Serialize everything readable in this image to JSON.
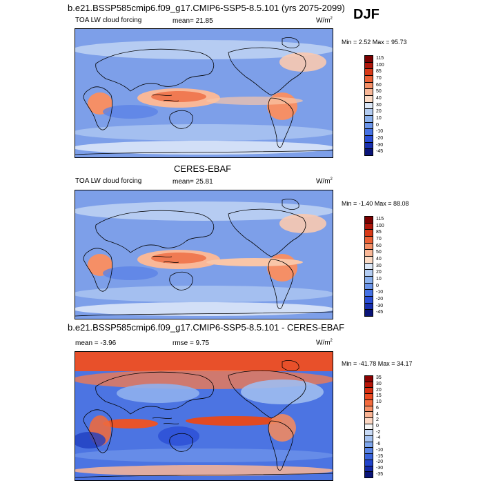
{
  "season": "DJF",
  "units_label": "W/m",
  "units_sup": "2",
  "panels": [
    {
      "title": "b.e21.BSSP585cmip6.f09_g17.CMIP6-SSP5-8.5.101 (yrs 2075-2099)",
      "left_label": "TOA LW cloud forcing",
      "center_label": "mean=  21.85",
      "minmax": "Min =   2.52 Max =  95.73",
      "colorbar": {
        "levels": [
          "115",
          "100",
          "85",
          "70",
          "60",
          "50",
          "40",
          "30",
          "20",
          "10",
          "0",
          "-10",
          "-20",
          "-30",
          "-45"
        ],
        "colors": [
          "#7a0000",
          "#b0160b",
          "#d83a18",
          "#ec6136",
          "#f58f66",
          "#f9b898",
          "#fcdcc6",
          "#dbe7f7",
          "#b4cdf2",
          "#8cb2ee",
          "#6b95eb",
          "#4672e4",
          "#2a4ed6",
          "#1930b0",
          "#0a1478"
        ]
      }
    },
    {
      "title": "CERES-EBAF",
      "left_label": "TOA LW cloud forcing",
      "center_label": "mean=  25.81",
      "minmax": "Min =  -1.40 Max =  88.08",
      "colorbar": {
        "levels": [
          "115",
          "100",
          "85",
          "70",
          "60",
          "50",
          "40",
          "30",
          "20",
          "10",
          "0",
          "-10",
          "-20",
          "-30",
          "-45"
        ],
        "colors": [
          "#7a0000",
          "#b0160b",
          "#d83a18",
          "#ec6136",
          "#f58f66",
          "#f9b898",
          "#fcdcc6",
          "#dbe7f7",
          "#b4cdf2",
          "#8cb2ee",
          "#6b95eb",
          "#4672e4",
          "#2a4ed6",
          "#1930b0",
          "#0a1478"
        ]
      }
    },
    {
      "title": "b.e21.BSSP585cmip6.f09_g17.CMIP6-SSP5-8.5.101 - CERES-EBAF",
      "left_label": "mean =  -3.96",
      "center_label": "rmse =   9.75",
      "minmax": "Min = -41.78 Max =  34.17",
      "colorbar": {
        "levels": [
          "35",
          "30",
          "20",
          "15",
          "10",
          "6",
          "4",
          "2",
          "0",
          "-2",
          "-4",
          "-6",
          "-10",
          "-15",
          "-20",
          "-30",
          "-35"
        ],
        "colors": [
          "#8a0000",
          "#b71508",
          "#d82e10",
          "#ec4a22",
          "#f36b3e",
          "#f78f66",
          "#fab494",
          "#fdd8c4",
          "#f5f5f5",
          "#c9dbf6",
          "#a6c3f1",
          "#7ea6ec",
          "#5a85e6",
          "#3a64dd",
          "#2244cc",
          "#1429a8",
          "#0a1478"
        ]
      }
    }
  ]
}
